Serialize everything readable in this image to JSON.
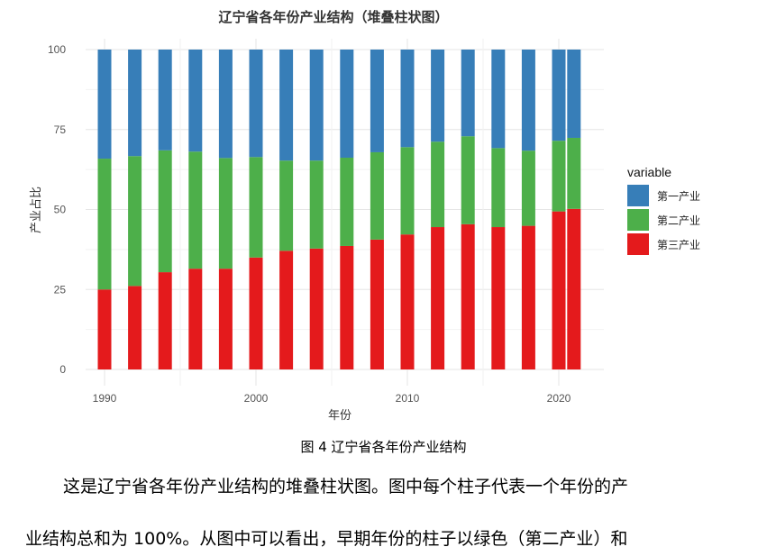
{
  "chart_data": {
    "type": "bar",
    "stacked": true,
    "title": "辽宁省各年份产业结构（堆叠柱状图）",
    "xlabel": "年份",
    "ylabel": "产业占比",
    "x": [
      1990,
      1992,
      1994,
      1996,
      1998,
      2000,
      2002,
      2004,
      2006,
      2008,
      2010,
      2012,
      2014,
      2016,
      2018,
      2020,
      2021
    ],
    "xticks": [
      1990,
      2000,
      2010,
      2020
    ],
    "yticks": [
      0,
      25,
      50,
      75,
      100
    ],
    "ylim": [
      0,
      100
    ],
    "grid": true,
    "legend": {
      "title": "variable",
      "position": "right"
    },
    "series": [
      {
        "name": "第一产业",
        "color": "#377EB8",
        "values": [
          34.1,
          33.3,
          31.5,
          31.9,
          33.9,
          33.6,
          34.7,
          34.7,
          33.8,
          32.1,
          30.5,
          28.8,
          27.1,
          30.8,
          31.6,
          28.5,
          27.6
        ]
      },
      {
        "name": "第二产业",
        "color": "#4DAF4A",
        "values": [
          40.9,
          40.6,
          38.1,
          36.6,
          34.6,
          31.4,
          28.2,
          27.5,
          27.6,
          27.3,
          27.3,
          26.7,
          27.5,
          24.7,
          23.5,
          22.1,
          22.2
        ]
      },
      {
        "name": "第三产业",
        "color": "#E41A1C",
        "values": [
          25.0,
          26.1,
          30.4,
          31.5,
          31.5,
          35.0,
          37.1,
          37.8,
          38.6,
          40.6,
          42.2,
          44.5,
          45.4,
          44.5,
          44.9,
          49.4,
          50.2
        ]
      }
    ]
  },
  "caption": "图 4 辽宁省各年份产业结构",
  "paragraph": {
    "line1": "这是辽宁省各年份产业结构的堆叠柱状图。图中每个柱子代表一个年份的产",
    "line2": "业结构总和为  100%。从图中可以看出，早期年份的柱子以绿色（第二产业）和"
  }
}
